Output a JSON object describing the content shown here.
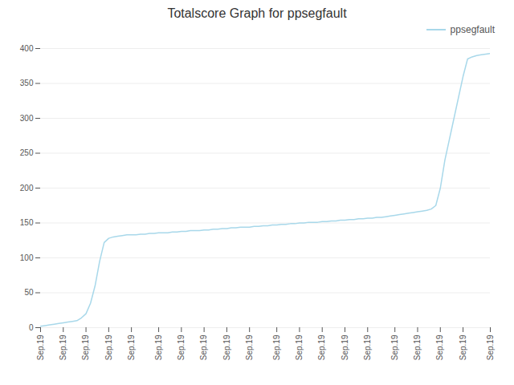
{
  "chart_data": {
    "type": "line",
    "title": "Totalscore Graph for ppsegfault",
    "x": [
      0,
      1,
      2,
      3,
      4,
      5,
      6,
      7,
      8,
      9,
      10,
      11,
      12,
      13,
      14,
      15,
      16,
      17,
      18,
      19,
      20,
      21,
      22,
      23,
      24,
      25,
      26,
      27,
      28,
      29,
      30,
      31,
      32,
      33,
      34,
      35,
      36,
      37,
      38,
      39,
      40,
      41,
      42,
      43,
      44,
      45,
      46,
      47,
      48,
      49,
      50,
      51,
      52,
      53,
      54,
      55,
      56,
      57,
      58,
      59,
      60,
      61,
      62,
      63,
      64,
      65,
      66,
      67,
      68,
      69,
      70,
      71,
      72,
      73,
      74,
      75,
      76,
      77,
      78,
      79,
      80,
      81,
      82,
      83,
      84,
      85,
      86,
      87,
      88,
      89,
      90,
      91,
      92,
      93,
      94,
      95,
      96,
      97,
      98,
      99
    ],
    "series": [
      {
        "name": "ppsegfault",
        "color": "#a8d8ea",
        "values": [
          2,
          3,
          4,
          5,
          6,
          7,
          8,
          9,
          10,
          14,
          20,
          35,
          60,
          95,
          122,
          128,
          130,
          131,
          132,
          133,
          133,
          133,
          134,
          134,
          135,
          135,
          136,
          136,
          136,
          137,
          137,
          138,
          138,
          139,
          139,
          139,
          140,
          140,
          141,
          141,
          142,
          142,
          143,
          143,
          144,
          144,
          144,
          145,
          145,
          146,
          146,
          147,
          147,
          148,
          148,
          149,
          149,
          150,
          150,
          151,
          151,
          151,
          152,
          152,
          153,
          153,
          154,
          154,
          155,
          155,
          156,
          156,
          157,
          157,
          158,
          158,
          159,
          160,
          161,
          162,
          163,
          164,
          165,
          166,
          167,
          168,
          170,
          175,
          200,
          240,
          270,
          300,
          330,
          360,
          385,
          388,
          390,
          391,
          392,
          393
        ]
      }
    ],
    "xlim": [
      0,
      99
    ],
    "xticks": [
      {
        "value": 0,
        "label": "Sep.19"
      },
      {
        "value": 5,
        "label": "Sep.19"
      },
      {
        "value": 10,
        "label": "Sep.19"
      },
      {
        "value": 15,
        "label": "Sep.19"
      },
      {
        "value": 20,
        "label": "Sep.19"
      },
      {
        "value": 26,
        "label": "Sep.19"
      },
      {
        "value": 31,
        "label": "Sep.19"
      },
      {
        "value": 36,
        "label": "Sep.19"
      },
      {
        "value": 41,
        "label": "Sep.19"
      },
      {
        "value": 46,
        "label": "Sep.19"
      },
      {
        "value": 52,
        "label": "Sep.19"
      },
      {
        "value": 57,
        "label": "Sep.19"
      },
      {
        "value": 62,
        "label": "Sep.19"
      },
      {
        "value": 67,
        "label": "Sep.19"
      },
      {
        "value": 72,
        "label": "Sep.19"
      },
      {
        "value": 78,
        "label": "Sep.19"
      },
      {
        "value": 83,
        "label": "Sep.19"
      },
      {
        "value": 88,
        "label": "Sep.19"
      },
      {
        "value": 93,
        "label": "Sep.19"
      },
      {
        "value": 99,
        "label": "Sep.19"
      }
    ],
    "ylim": [
      0,
      400
    ],
    "yticks": [
      0,
      50,
      100,
      150,
      200,
      250,
      300,
      350,
      400
    ],
    "grid": true,
    "legend": "upper right"
  }
}
